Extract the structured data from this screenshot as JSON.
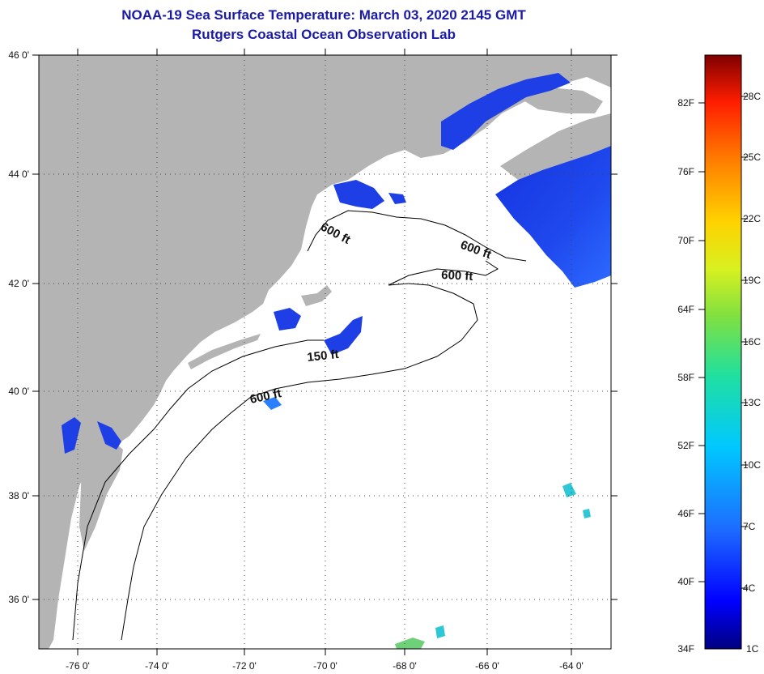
{
  "title": {
    "line1": "NOAA-19 Sea Surface Temperature:  March 03, 2020 2145 GMT",
    "line2": "Rutgers Coastal Ocean Observation Lab"
  },
  "map": {
    "lat_labels": [
      "46 0'",
      "44 0'",
      "42 0'",
      "40 0'",
      "38 0'",
      "36 0'"
    ],
    "lon_labels": [
      "-76 0'",
      "-74 0'",
      "-72 0'",
      "-70 0'",
      "-68 0'",
      "-66 0'",
      "-64 0'"
    ],
    "contour_labels": [
      "600 ft",
      "600 ft",
      "600 ft",
      "150 ft",
      "600 ft"
    ],
    "colors": {
      "land": "#b4b4b4",
      "ocean_cloud": "#ffffff",
      "sst_cold": "#1e3fe6",
      "sst_warm_patch": "#2a7fff",
      "grid": "#333333"
    }
  },
  "colorbar": {
    "fahrenheit_labels": [
      "82F",
      "76F",
      "70F",
      "64F",
      "58F",
      "52F",
      "46F",
      "40F",
      "34F"
    ],
    "celsius_labels": [
      "28C",
      "25C",
      "22C",
      "19C",
      "16C",
      "13C",
      "10C",
      "7C",
      "4C",
      "1C"
    ]
  }
}
